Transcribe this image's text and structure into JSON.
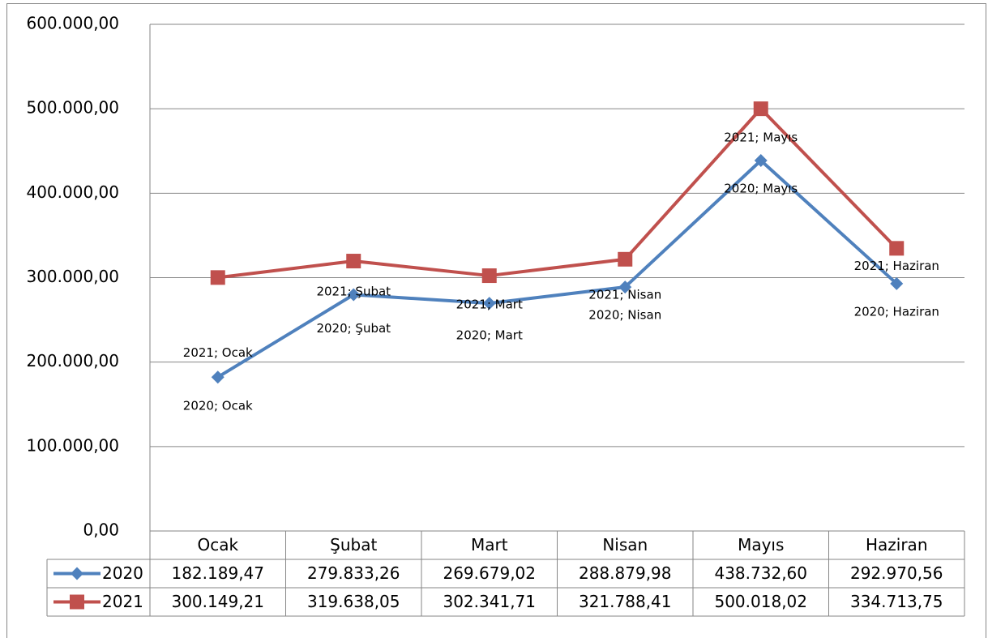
{
  "chart_data": {
    "type": "line",
    "categories": [
      "Ocak",
      "Şubat",
      "Mart",
      "Nisan",
      "Mayıs",
      "Haziran"
    ],
    "series": [
      {
        "name": "2020",
        "color": "#4f81bd",
        "marker": "diamond",
        "values": [
          182189.47,
          279833.26,
          269679.02,
          288879.98,
          438732.6,
          292970.56
        ],
        "value_labels": [
          "182.189,47",
          "279.833,26",
          "269.679,02",
          "288.879,98",
          "438.732,60",
          "292.970,56"
        ],
        "point_labels": [
          "2020; Ocak",
          "2020; Şubat",
          "2020; Mart",
          "2020; Nisan",
          "2020; Mayıs",
          "2020; Haziran"
        ]
      },
      {
        "name": "2021",
        "color": "#c0504d",
        "marker": "square",
        "values": [
          300149.21,
          319638.05,
          302341.71,
          321788.41,
          500018.02,
          334713.75
        ],
        "value_labels": [
          "300.149,21",
          "319.638,05",
          "302.341,71",
          "321.788,41",
          "500.018,02",
          "334.713,75"
        ],
        "point_labels": [
          "2021; Ocak",
          "2021; Şubat",
          "2021; Mart",
          "2021; Nisan",
          "2021; Mayıs",
          "2021; Haziran"
        ]
      }
    ],
    "ylim": [
      0,
      600000
    ],
    "yticks": [
      {
        "value": 0,
        "label": "0,00"
      },
      {
        "value": 100000,
        "label": "100.000,00"
      },
      {
        "value": 200000,
        "label": "200.000,00"
      },
      {
        "value": 300000,
        "label": "300.000,00"
      },
      {
        "value": 400000,
        "label": "400.000,00"
      },
      {
        "value": 500000,
        "label": "500.000,00"
      },
      {
        "value": 600000,
        "label": "600.000,00"
      }
    ],
    "grid": true
  }
}
